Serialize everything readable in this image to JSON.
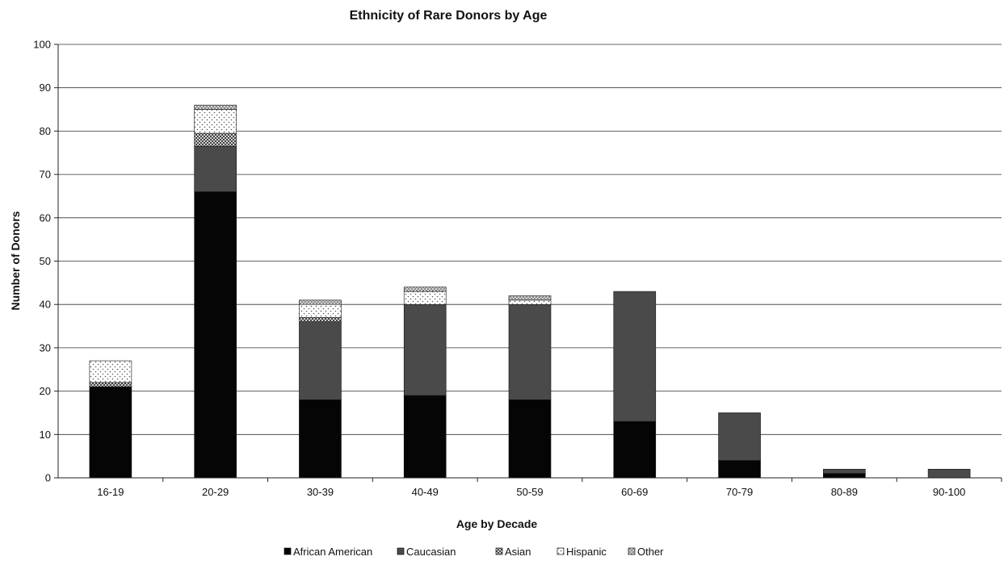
{
  "chart_data": {
    "type": "bar",
    "stacked": true,
    "title": "Ethnicity of Rare Donors by Age",
    "xlabel": "Age by Decade",
    "ylabel": "Number of Donors",
    "ylim": [
      0,
      100
    ],
    "yticks": [
      0,
      10,
      20,
      30,
      40,
      50,
      60,
      70,
      80,
      90,
      100
    ],
    "grid": true,
    "legend_position": "bottom",
    "categories": [
      "16-19",
      "20-29",
      "30-39",
      "40-49",
      "50-59",
      "60-69",
      "70-79",
      "80-89",
      "90-100"
    ],
    "series": [
      {
        "name": "African American",
        "color": "#050505",
        "pattern": "solid",
        "values": [
          21,
          66,
          18,
          19,
          18,
          13,
          4,
          1,
          0
        ]
      },
      {
        "name": "Caucasian",
        "color": "#4a4a4a",
        "pattern": "solid",
        "values": [
          0,
          10.5,
          18,
          21,
          22,
          30,
          11,
          1,
          2
        ]
      },
      {
        "name": "Asian",
        "color": "#8c8c8c",
        "pattern": "checker",
        "values": [
          1,
          3,
          1,
          0,
          0,
          0,
          0,
          0,
          0
        ]
      },
      {
        "name": "Hispanic",
        "color": "#ffffff",
        "pattern": "dots",
        "values": [
          5,
          5.5,
          3,
          3,
          1,
          0,
          0,
          0,
          0
        ]
      },
      {
        "name": "Other",
        "color": "#bdbdbd",
        "pattern": "crosshatch",
        "values": [
          0,
          1,
          1,
          1,
          1,
          0,
          0,
          0,
          0
        ]
      }
    ]
  }
}
